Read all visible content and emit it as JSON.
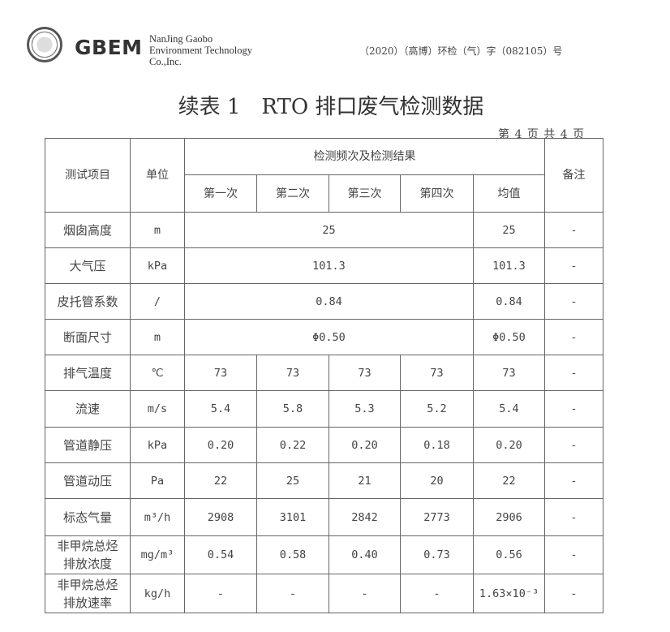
{
  "header": {
    "logo_text": "GBEM",
    "company_lines": [
      "NanJing Gaobo",
      "Environment Technology",
      "Co.,Inc."
    ],
    "doc_number": "（2020）（高博）环检（气）字（082105）号"
  },
  "title": "续表 1　RTO 排口废气检测数据",
  "page_indicator": "第 4 页 共 4 页",
  "table": {
    "headers": {
      "item": "测试项目",
      "unit": "单位",
      "group": "检测频次及检测结果",
      "runs": [
        "第一次",
        "第二次",
        "第三次",
        "第四次"
      ],
      "mean": "均值",
      "remark": "备注"
    },
    "merged_rows": [
      {
        "item": "烟囱高度",
        "unit": "m",
        "value": "25",
        "mean": "25",
        "remark": "-"
      },
      {
        "item": "大气压",
        "unit": "kPa",
        "value": "101.3",
        "mean": "101.3",
        "remark": "-"
      },
      {
        "item": "皮托管系数",
        "unit": "/",
        "value": "0.84",
        "mean": "0.84",
        "remark": "-"
      },
      {
        "item": "断面尺寸",
        "unit": "m",
        "value": "Φ0.50",
        "mean": "Φ0.50",
        "remark": "-"
      }
    ],
    "rows": [
      {
        "item": "排气温度",
        "unit": "℃",
        "values": [
          "73",
          "73",
          "73",
          "73"
        ],
        "mean": "73",
        "remark": "-"
      },
      {
        "item": "流速",
        "unit": "m/s",
        "values": [
          "5.4",
          "5.8",
          "5.3",
          "5.2"
        ],
        "mean": "5.4",
        "remark": "-"
      },
      {
        "item": "管道静压",
        "unit": "kPa",
        "values": [
          "0.20",
          "0.22",
          "0.20",
          "0.18"
        ],
        "mean": "0.20",
        "remark": "-"
      },
      {
        "item": "管道动压",
        "unit": "Pa",
        "values": [
          "22",
          "25",
          "21",
          "20"
        ],
        "mean": "22",
        "remark": "-"
      },
      {
        "item": "标态气量",
        "unit": "m³/h",
        "values": [
          "2908",
          "3101",
          "2842",
          "2773"
        ],
        "mean": "2906",
        "remark": "-"
      },
      {
        "item": "非甲烷总烃\n排放浓度",
        "unit": "mg/m³",
        "values": [
          "0.54",
          "0.58",
          "0.40",
          "0.73"
        ],
        "mean": "0.56",
        "remark": "-"
      },
      {
        "item": "非甲烷总烃\n排放速率",
        "unit": "kg/h",
        "values": [
          "-",
          "-",
          "-",
          "-"
        ],
        "mean": "1.63×10⁻³",
        "remark": "-"
      }
    ]
  }
}
